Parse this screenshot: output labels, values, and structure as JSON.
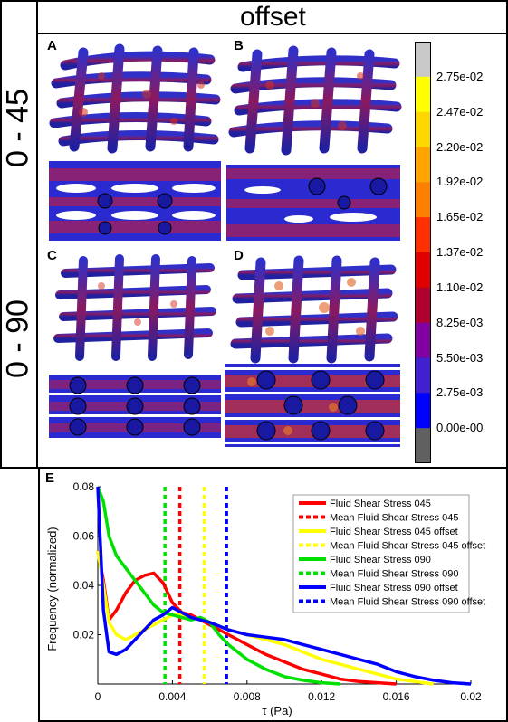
{
  "figure": {
    "column_header": "offset",
    "row_labels": [
      "0 - 45",
      "0 - 90"
    ],
    "panel_labels": [
      "A",
      "B",
      "C",
      "D",
      "E"
    ]
  },
  "colorbar": {
    "ticks": [
      "2.75e-02",
      "2.47e-02",
      "2.20e-02",
      "1.92e-02",
      "1.65e-02",
      "1.37e-02",
      "1.10e-02",
      "8.25e-03",
      "5.50e-03",
      "2.75e-03",
      "0.00e-00"
    ],
    "colors": [
      "#c8c8c8",
      "#ffff00",
      "#ffd700",
      "#ffa500",
      "#ff7f00",
      "#ff3000",
      "#e00000",
      "#b00030",
      "#8000a0",
      "#4020d0",
      "#0000ff",
      "#606060"
    ]
  },
  "chart_data": {
    "type": "line",
    "xlabel": "τ (Pa)",
    "ylabel": "Frequency (normalized)",
    "xlim": [
      0,
      0.02
    ],
    "ylim": [
      0,
      0.08
    ],
    "xticks": [
      "0",
      "0.004",
      "0.008",
      "0.012",
      "0.016",
      "0.02"
    ],
    "yticks": [
      "0.02",
      "0.04",
      "0.06",
      "0.08"
    ],
    "legend_position": "top-right",
    "series": [
      {
        "name": "Fluid Shear Stress 045",
        "color": "#ff0000",
        "style": "solid",
        "x": [
          0,
          0.0003,
          0.0006,
          0.001,
          0.0015,
          0.002,
          0.0025,
          0.003,
          0.0035,
          0.004,
          0.0045,
          0.005,
          0.0055,
          0.006,
          0.007,
          0.008,
          0.009,
          0.01,
          0.011,
          0.012,
          0.013,
          0.014,
          0.015,
          0.016
        ],
        "y": [
          0.054,
          0.042,
          0.026,
          0.03,
          0.037,
          0.042,
          0.044,
          0.045,
          0.041,
          0.033,
          0.029,
          0.028,
          0.026,
          0.024,
          0.02,
          0.016,
          0.012,
          0.009,
          0.006,
          0.004,
          0.002,
          0.001,
          0.0005,
          0
        ]
      },
      {
        "name": "Mean Fluid Shear Stress 045",
        "color": "#ff0000",
        "style": "dashed",
        "vx": 0.0044
      },
      {
        "name": "Fluid Shear Stress 045 offset",
        "color": "#ffff00",
        "style": "solid",
        "x": [
          0,
          0.0003,
          0.0006,
          0.001,
          0.0015,
          0.002,
          0.0025,
          0.003,
          0.0035,
          0.004,
          0.0045,
          0.005,
          0.0055,
          0.006,
          0.007,
          0.008,
          0.009,
          0.01,
          0.011,
          0.012,
          0.013,
          0.014,
          0.015,
          0.016,
          0.017,
          0.018
        ],
        "y": [
          0.054,
          0.04,
          0.025,
          0.02,
          0.018,
          0.02,
          0.022,
          0.024,
          0.026,
          0.028,
          0.028,
          0.027,
          0.026,
          0.025,
          0.022,
          0.02,
          0.018,
          0.016,
          0.013,
          0.01,
          0.008,
          0.006,
          0.004,
          0.002,
          0.001,
          0
        ]
      },
      {
        "name": "Mean Fluid Shear Stress 045 offset",
        "color": "#ffff00",
        "style": "dashed",
        "vx": 0.0057
      },
      {
        "name": "Fluid Shear Stress 090",
        "color": "#00e000",
        "style": "solid",
        "x": [
          0,
          0.0003,
          0.0006,
          0.001,
          0.0015,
          0.002,
          0.0025,
          0.003,
          0.0035,
          0.004,
          0.0045,
          0.005,
          0.0055,
          0.006,
          0.0065,
          0.007,
          0.008,
          0.009,
          0.01,
          0.011,
          0.012,
          0.013
        ],
        "y": [
          0.08,
          0.074,
          0.06,
          0.052,
          0.047,
          0.042,
          0.037,
          0.032,
          0.029,
          0.028,
          0.027,
          0.026,
          0.027,
          0.025,
          0.02,
          0.016,
          0.01,
          0.006,
          0.003,
          0.0015,
          0.0005,
          0
        ]
      },
      {
        "name": "Mean Fluid Shear Stress 090",
        "color": "#00e000",
        "style": "dashed",
        "vx": 0.0036
      },
      {
        "name": "Fluid Shear Stress 090 offset",
        "color": "#0000ff",
        "style": "solid",
        "x": [
          0,
          0.0003,
          0.0006,
          0.001,
          0.0015,
          0.002,
          0.0025,
          0.003,
          0.0035,
          0.004,
          0.0045,
          0.005,
          0.0055,
          0.006,
          0.007,
          0.008,
          0.009,
          0.01,
          0.011,
          0.012,
          0.013,
          0.014,
          0.015,
          0.016,
          0.017,
          0.018,
          0.019,
          0.02
        ],
        "y": [
          0.08,
          0.03,
          0.013,
          0.012,
          0.014,
          0.018,
          0.022,
          0.026,
          0.028,
          0.031,
          0.029,
          0.027,
          0.026,
          0.025,
          0.022,
          0.02,
          0.019,
          0.018,
          0.016,
          0.014,
          0.012,
          0.01,
          0.008,
          0.005,
          0.003,
          0.0015,
          0.0005,
          0
        ]
      },
      {
        "name": "Mean Fluid Shear Stress 090 offset",
        "color": "#0000ff",
        "style": "dashed",
        "vx": 0.0069
      }
    ]
  }
}
